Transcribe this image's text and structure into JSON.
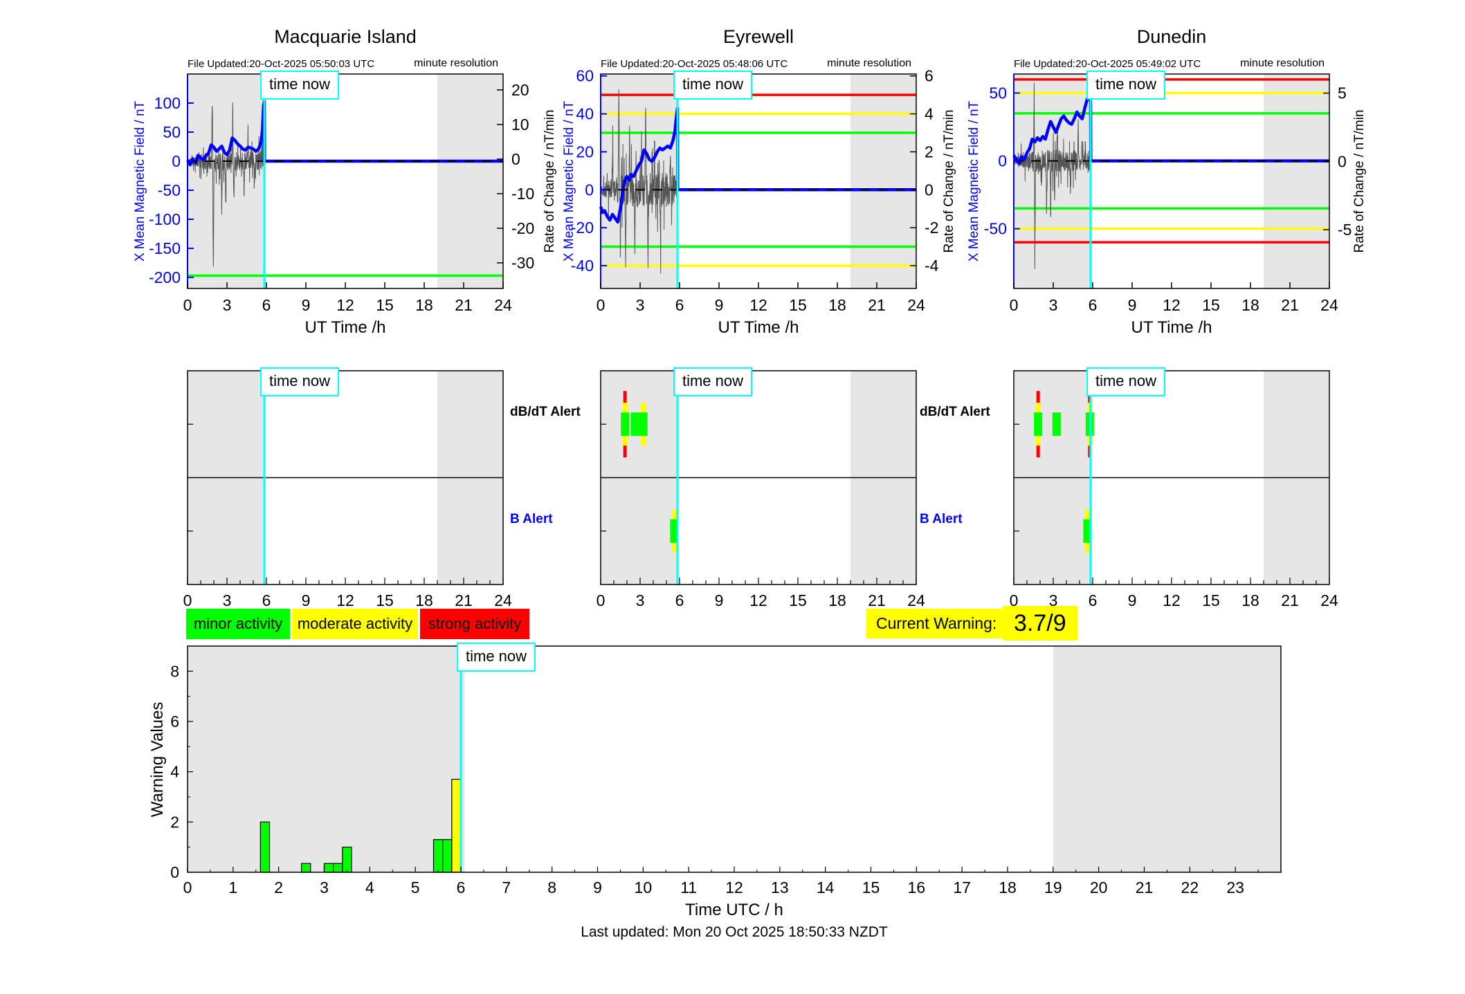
{
  "chart_data": {
    "time_now_label": "time now",
    "footer": "Last updated: Mon 20 Oct 2025 18:50:33 NZDT",
    "colors": {
      "minor": "#00ff00",
      "moderate": "#ffff00",
      "strong": "#ff0000",
      "mean_line": "#0000ff",
      "time_now": "#00ffff",
      "shaded_band": "#e6e6e6",
      "noise_trace": "#555555",
      "left_axis_text": "#0000ff"
    },
    "alert_row_labels": {
      "dbdt": "dB/dT Alert",
      "b": "B Alert"
    },
    "activity_legend": [
      {
        "label": "minor activity",
        "level": "minor"
      },
      {
        "label": "moderate activity",
        "level": "moderate"
      },
      {
        "label": "strong activity",
        "level": "strong"
      }
    ],
    "current_warning": {
      "label": "Current Warning:",
      "value": "3.7/9"
    },
    "stations": [
      {
        "title": "Macquarie Island",
        "file_updated": "File Updated:20-Oct-2025 05:50:03 UTC",
        "resolution_note": "minute resolution",
        "left_axis": {
          "label": "X Mean Magnetic Field / nT",
          "ticks": [
            100,
            50,
            0,
            -50,
            -100,
            -150,
            -200
          ],
          "range": {
            "min": -219,
            "max": 150
          }
        },
        "right_axis": {
          "label": "Rate of Change / nT/min",
          "ticks": [
            20,
            10,
            0,
            -10,
            -20,
            -30
          ],
          "range": {
            "min": -37.4,
            "max": 24.6
          }
        },
        "x_axis": {
          "label": "UT Time /h",
          "ticks": [
            0,
            3,
            6,
            9,
            12,
            15,
            18,
            21,
            24
          ],
          "range": [
            0,
            24
          ]
        },
        "time_now_hour": 5.84,
        "shaded_hours": [
          [
            0,
            5.84
          ],
          [
            19,
            24
          ]
        ],
        "threshold_lines": [
          {
            "value": -197,
            "level": "minor"
          }
        ],
        "mean_series": [
          [
            0,
            2
          ],
          [
            0.2,
            -6
          ],
          [
            0.4,
            4
          ],
          [
            0.6,
            -3
          ],
          [
            0.8,
            10
          ],
          [
            1.0,
            6
          ],
          [
            1.2,
            2
          ],
          [
            1.4,
            9
          ],
          [
            1.6,
            14
          ],
          [
            1.8,
            28
          ],
          [
            2.0,
            24
          ],
          [
            2.2,
            17
          ],
          [
            2.4,
            21
          ],
          [
            2.6,
            26
          ],
          [
            2.8,
            15
          ],
          [
            3.0,
            11
          ],
          [
            3.2,
            19
          ],
          [
            3.4,
            40
          ],
          [
            3.6,
            36
          ],
          [
            3.8,
            30
          ],
          [
            4.0,
            26
          ],
          [
            4.2,
            21
          ],
          [
            4.4,
            19
          ],
          [
            4.6,
            24
          ],
          [
            4.8,
            23
          ],
          [
            5.0,
            21
          ],
          [
            5.2,
            17
          ],
          [
            5.4,
            21
          ],
          [
            5.6,
            33
          ],
          [
            5.7,
            55
          ],
          [
            5.78,
            95
          ],
          [
            5.84,
            103
          ],
          [
            5.86,
            0
          ],
          [
            24,
            0
          ]
        ],
        "noise": {
          "seed": 11,
          "amplitude": 16,
          "spikes": [
            [
              1.88,
              112
            ],
            [
              1.94,
              -70
            ],
            [
              1.97,
              -152
            ],
            [
              2.6,
              -78
            ],
            [
              2.9,
              -62
            ],
            [
              3.44,
              108
            ],
            [
              3.52,
              -70
            ],
            [
              4.3,
              -58
            ],
            [
              4.6,
              52
            ],
            [
              5.1,
              -44
            ]
          ]
        },
        "alerts": {
          "dbdt": [],
          "b": []
        }
      },
      {
        "title": "Eyrewell",
        "file_updated": "File Updated:20-Oct-2025 05:48:06 UTC",
        "resolution_note": "minute resolution",
        "left_axis": {
          "label": "X Mean Magnetic Field / nT",
          "ticks": [
            60,
            40,
            20,
            0,
            -20,
            -40
          ],
          "range": {
            "min": -52,
            "max": 61
          }
        },
        "right_axis": {
          "label": "Rate of Change / nT/min",
          "ticks": [
            6,
            4,
            2,
            0,
            -2,
            -4
          ],
          "range": {
            "min": -5.2,
            "max": 6.1
          }
        },
        "x_axis": {
          "label": "UT Time /h",
          "ticks": [
            0,
            3,
            6,
            9,
            12,
            15,
            18,
            21,
            24
          ],
          "range": [
            0,
            24
          ]
        },
        "time_now_hour": 5.84,
        "shaded_hours": [
          [
            0,
            5.84
          ],
          [
            19,
            24
          ]
        ],
        "threshold_lines": [
          {
            "value": 50,
            "level": "strong"
          },
          {
            "value": 40,
            "level": "moderate"
          },
          {
            "value": 30,
            "level": "minor"
          },
          {
            "value": -30,
            "level": "minor"
          },
          {
            "value": -40,
            "level": "moderate"
          }
        ],
        "mean_series": [
          [
            0,
            -9
          ],
          [
            0.15,
            -12
          ],
          [
            0.3,
            -11
          ],
          [
            0.5,
            -14
          ],
          [
            0.7,
            -16
          ],
          [
            0.9,
            -13
          ],
          [
            1.1,
            -15
          ],
          [
            1.3,
            -17
          ],
          [
            1.5,
            -10
          ],
          [
            1.7,
            0
          ],
          [
            1.85,
            5
          ],
          [
            2.0,
            7
          ],
          [
            2.15,
            5
          ],
          [
            2.3,
            8
          ],
          [
            2.5,
            7
          ],
          [
            2.7,
            10
          ],
          [
            2.9,
            13
          ],
          [
            3.1,
            15
          ],
          [
            3.3,
            21
          ],
          [
            3.5,
            19
          ],
          [
            3.7,
            16
          ],
          [
            3.9,
            15
          ],
          [
            4.1,
            17
          ],
          [
            4.3,
            20
          ],
          [
            4.5,
            22
          ],
          [
            4.7,
            21
          ],
          [
            4.9,
            22
          ],
          [
            5.1,
            23
          ],
          [
            5.3,
            22
          ],
          [
            5.5,
            26
          ],
          [
            5.65,
            31
          ],
          [
            5.75,
            38
          ],
          [
            5.84,
            43
          ],
          [
            5.86,
            0
          ],
          [
            24,
            0
          ]
        ],
        "noise": {
          "seed": 7,
          "amplitude": 9,
          "spikes": [
            [
              0.9,
              30
            ],
            [
              1.38,
              57
            ],
            [
              1.5,
              -32
            ],
            [
              1.9,
              -43
            ],
            [
              2.2,
              34
            ],
            [
              2.6,
              -36
            ],
            [
              3.1,
              30
            ],
            [
              3.42,
              46
            ],
            [
              3.6,
              -43
            ],
            [
              4.1,
              28
            ],
            [
              4.55,
              -26
            ],
            [
              5.3,
              26
            ]
          ]
        },
        "alerts": {
          "dbdt": [
            {
              "hour": 1.85,
              "levels": [
                "strong",
                "moderate",
                "minor"
              ]
            },
            {
              "hour": 2.6,
              "levels": [
                "minor"
              ]
            },
            {
              "hour": 3.25,
              "levels": [
                "moderate",
                "minor"
              ]
            }
          ],
          "b": [
            {
              "hour": 5.6,
              "levels": [
                "moderate",
                "minor"
              ]
            }
          ]
        }
      },
      {
        "title": "Dunedin",
        "file_updated": "File Updated:20-Oct-2025 05:49:02 UTC",
        "resolution_note": "minute resolution",
        "left_axis": {
          "label": "X Mean Magnetic Field / nT",
          "ticks": [
            50,
            0,
            -50
          ],
          "range": {
            "min": -94,
            "max": 64
          }
        },
        "right_axis": {
          "label": "Rate of Change / nT/min",
          "ticks": [
            5,
            0,
            -5
          ],
          "range": {
            "min": -9.3,
            "max": 6.4
          }
        },
        "x_axis": {
          "label": "UT Time /h",
          "ticks": [
            0,
            3,
            6,
            9,
            12,
            15,
            18,
            21,
            24
          ],
          "range": [
            0,
            24
          ]
        },
        "time_now_hour": 5.84,
        "shaded_hours": [
          [
            0,
            5.84
          ],
          [
            19,
            24
          ]
        ],
        "threshold_lines": [
          {
            "value": 60,
            "level": "strong"
          },
          {
            "value": 50,
            "level": "moderate"
          },
          {
            "value": 35,
            "level": "minor"
          },
          {
            "value": -35,
            "level": "minor"
          },
          {
            "value": -50,
            "level": "moderate"
          },
          {
            "value": -60,
            "level": "strong"
          }
        ],
        "mean_series": [
          [
            0,
            4
          ],
          [
            0.2,
            1
          ],
          [
            0.4,
            -2
          ],
          [
            0.6,
            3
          ],
          [
            0.8,
            1
          ],
          [
            1.0,
            6
          ],
          [
            1.2,
            9
          ],
          [
            1.4,
            16
          ],
          [
            1.6,
            14
          ],
          [
            1.8,
            17
          ],
          [
            2.0,
            15
          ],
          [
            2.2,
            18
          ],
          [
            2.4,
            16
          ],
          [
            2.6,
            23
          ],
          [
            2.8,
            29
          ],
          [
            3.0,
            25
          ],
          [
            3.2,
            21
          ],
          [
            3.4,
            26
          ],
          [
            3.6,
            31
          ],
          [
            3.8,
            33
          ],
          [
            4.0,
            30
          ],
          [
            4.2,
            28
          ],
          [
            4.4,
            27
          ],
          [
            4.6,
            31
          ],
          [
            4.8,
            36
          ],
          [
            5.0,
            33
          ],
          [
            5.2,
            31
          ],
          [
            5.4,
            39
          ],
          [
            5.6,
            46
          ],
          [
            5.75,
            47
          ],
          [
            5.84,
            44
          ],
          [
            5.86,
            0
          ],
          [
            24,
            0
          ]
        ],
        "noise": {
          "seed": 23,
          "amplitude": 8,
          "spikes": [
            [
              1.55,
              55
            ],
            [
              1.6,
              -76
            ],
            [
              2.1,
              -26
            ],
            [
              2.5,
              -48
            ],
            [
              2.8,
              -40
            ],
            [
              3.1,
              -32
            ],
            [
              3.3,
              22
            ],
            [
              4.3,
              -24
            ],
            [
              4.9,
              26
            ]
          ]
        },
        "alerts": {
          "dbdt": [
            {
              "hour": 1.85,
              "levels": [
                "strong",
                "moderate",
                "minor"
              ]
            },
            {
              "hour": 3.25,
              "levels": [
                "minor"
              ]
            },
            {
              "hour": 5.78,
              "levels": [
                "strong",
                "moderate",
                "minor"
              ]
            }
          ],
          "b": [
            {
              "hour": 5.6,
              "levels": [
                "moderate",
                "minor"
              ]
            }
          ]
        }
      }
    ],
    "warning_chart": {
      "type": "bar",
      "ylabel": "Warning Values",
      "xlabel": "Time UTC / h",
      "y_ticks": [
        0,
        2,
        4,
        6,
        8
      ],
      "ylim": [
        0,
        9
      ],
      "xlim": [
        0,
        24
      ],
      "x_tick_labels": [
        0,
        1,
        2,
        3,
        4,
        5,
        6,
        7,
        8,
        9,
        10,
        11,
        12,
        13,
        14,
        15,
        16,
        17,
        18,
        19,
        20,
        21,
        22,
        23
      ],
      "time_now_hour": 6.0,
      "shaded_hours": [
        [
          0,
          6.08
        ],
        [
          19,
          24
        ]
      ],
      "bars": [
        {
          "start": 1.6,
          "end": 1.8,
          "value": 2.0,
          "level": "minor"
        },
        {
          "start": 2.5,
          "end": 2.7,
          "value": 0.35,
          "level": "minor"
        },
        {
          "start": 3.0,
          "end": 3.2,
          "value": 0.35,
          "level": "minor"
        },
        {
          "start": 3.2,
          "end": 3.4,
          "value": 0.35,
          "level": "minor"
        },
        {
          "start": 3.4,
          "end": 3.6,
          "value": 1.0,
          "level": "minor"
        },
        {
          "start": 5.4,
          "end": 5.6,
          "value": 1.3,
          "level": "minor"
        },
        {
          "start": 5.6,
          "end": 5.8,
          "value": 1.3,
          "level": "minor"
        },
        {
          "start": 5.8,
          "end": 6.0,
          "value": 3.7,
          "level": "moderate"
        }
      ]
    }
  }
}
